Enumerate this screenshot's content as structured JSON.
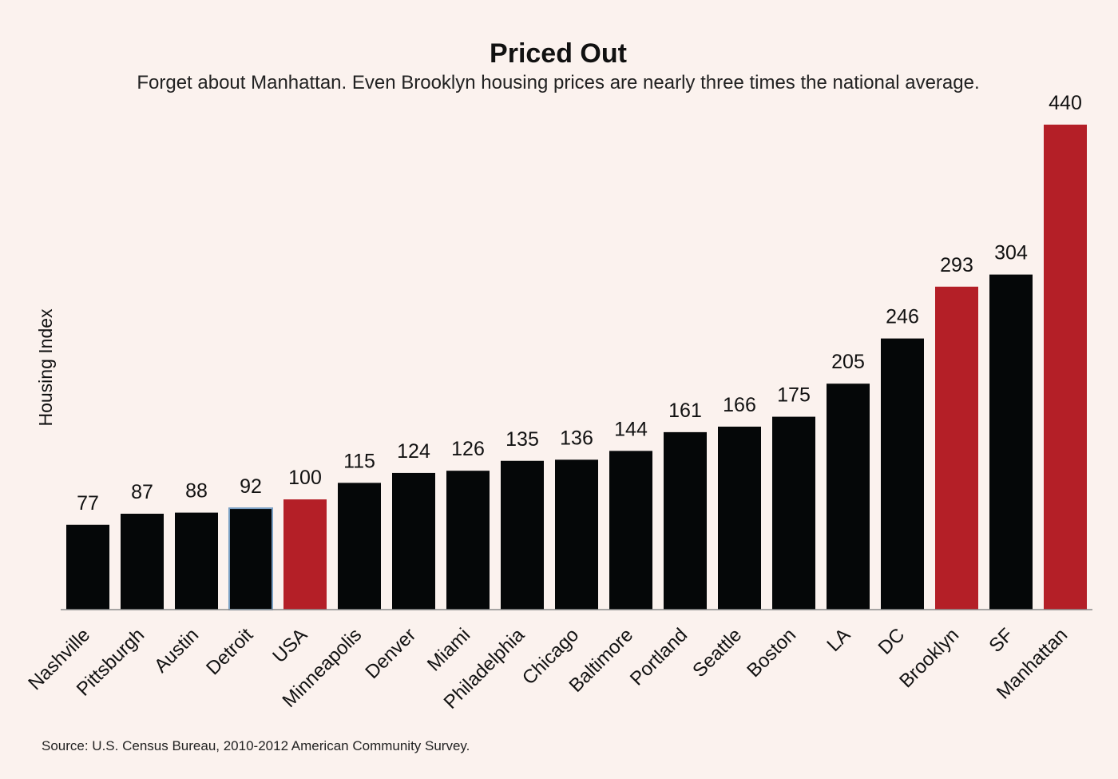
{
  "chart_data": {
    "type": "bar",
    "title": "Priced Out",
    "subtitle": "Forget about Manhattan. Even Brooklyn housing prices are nearly three times the national average.",
    "xlabel": "",
    "ylabel": "Housing Index",
    "ylim": [
      0,
      440
    ],
    "grid": false,
    "legend": "none",
    "categories": [
      "Nashville",
      "Pittsburgh",
      "Austin",
      "Detroit",
      "USA",
      "Minneapolis",
      "Denver",
      "Miami",
      "Philadelphia",
      "Chicago",
      "Baltimore",
      "Portland",
      "Seattle",
      "Boston",
      "LA",
      "DC",
      "Brooklyn",
      "SF",
      "Manhattan"
    ],
    "values": [
      77,
      87,
      88,
      92,
      100,
      115,
      124,
      126,
      135,
      136,
      144,
      161,
      166,
      175,
      205,
      246,
      293,
      304,
      440
    ],
    "highlighted": [
      "USA",
      "Brooklyn",
      "Manhattan"
    ],
    "outlined": [
      "Detroit"
    ],
    "colors": {
      "bar": "#050708",
      "highlight": "#b41f27",
      "outline": "#7aa0c4",
      "axis": "#8a8a8a",
      "background": "#fbf2ee"
    },
    "source": "Source: U.S. Census Bureau, 2010-2012 American Community Survey."
  }
}
